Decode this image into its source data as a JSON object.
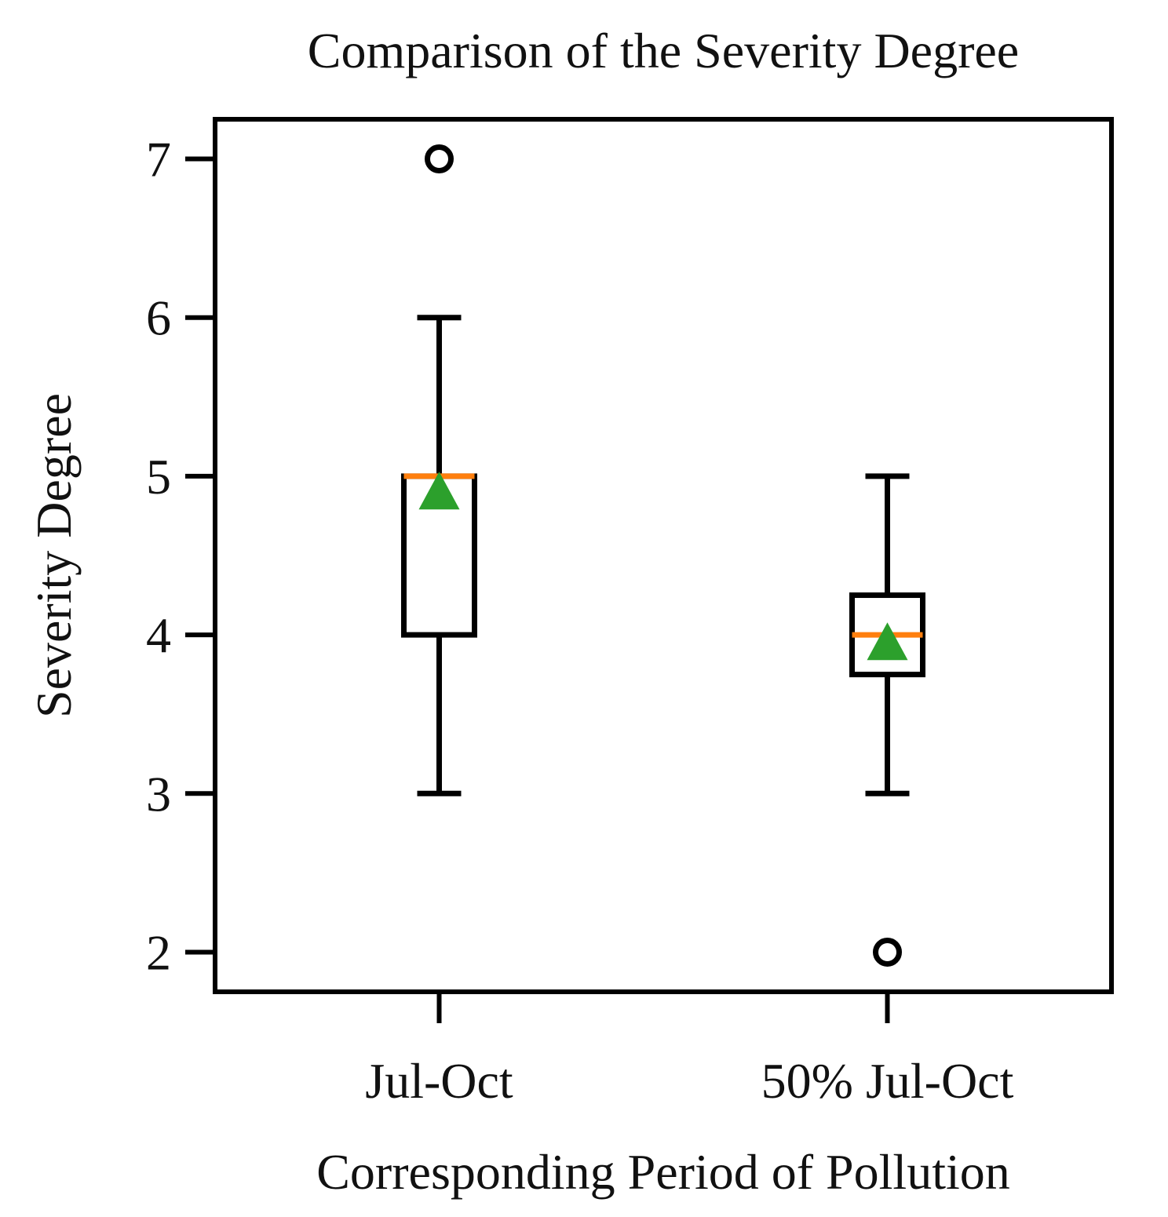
{
  "chart_data": {
    "type": "box",
    "title": "Comparison of the Severity Degree",
    "xlabel": "Corresponding Period of Pollution",
    "ylabel": "Severity Degree",
    "ylim": [
      1.75,
      7.25
    ],
    "yticks": [
      2,
      3,
      4,
      5,
      6,
      7
    ],
    "categories": [
      "Jul-Oct",
      "50% Jul-Oct"
    ],
    "boxes": [
      {
        "label": "Jul-Oct",
        "whisker_low": 3,
        "q1": 4,
        "median": 5,
        "q3": 5,
        "whisker_high": 6,
        "mean": 4.9,
        "outliers": [
          7
        ]
      },
      {
        "label": "50% Jul-Oct",
        "whisker_low": 3,
        "q1": 3.75,
        "median": 4,
        "q3": 4.25,
        "whisker_high": 5,
        "mean": 3.95,
        "outliers": [
          2
        ]
      }
    ],
    "colors": {
      "box": "#000000",
      "median": "#ff7f0e",
      "mean": "#2ca02c"
    }
  }
}
